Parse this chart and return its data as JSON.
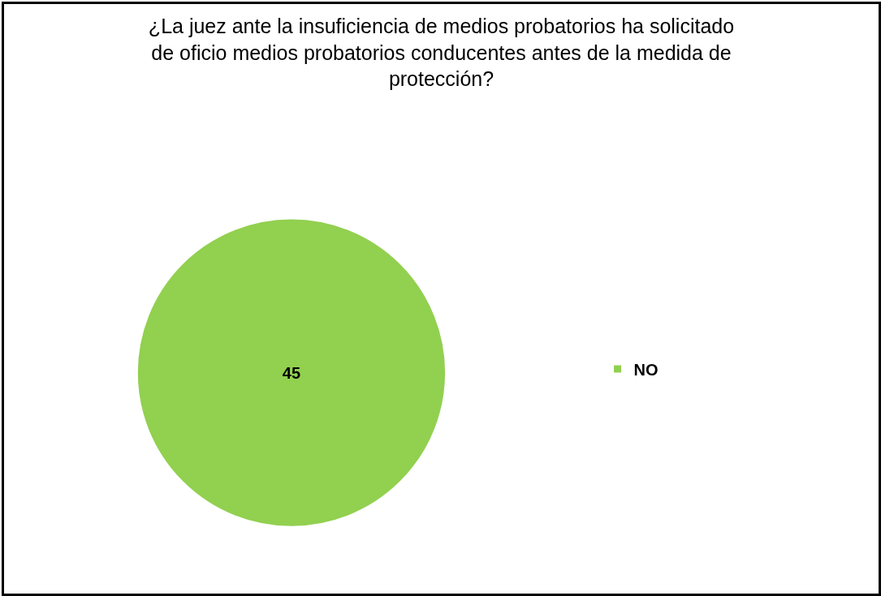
{
  "chart_data": {
    "type": "pie",
    "title": "¿La juez ante la insuficiencia de medios probatorios ha solicitado de oficio medios probatorios conducentes antes de la medida de protección?",
    "categories": [
      "NO"
    ],
    "values": [
      45
    ],
    "colors": [
      "#92d050"
    ],
    "data_labels": true,
    "legend": "right"
  }
}
